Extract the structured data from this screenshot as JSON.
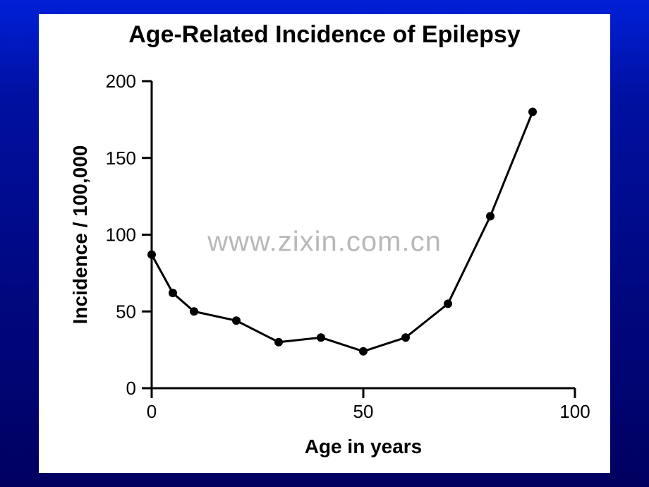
{
  "slide": {
    "background_gradient_top": "#0020d8",
    "background_gradient_bottom": "#000060"
  },
  "panel": {
    "background_color": "#ffffff"
  },
  "watermark": {
    "text": "www.zixin.com.cn",
    "color": "#b8b8b8",
    "fontsize": 40
  },
  "chart": {
    "type": "line",
    "title": "Age-Related Incidence of Epilepsy",
    "title_fontsize": 34,
    "title_fontweight": "bold",
    "xlabel": "Age in years",
    "ylabel": "Incidence / 100,000",
    "label_fontsize": 28,
    "label_fontweight": "bold",
    "axis_color": "#000000",
    "axis_width": 3,
    "x": [
      0,
      5,
      10,
      20,
      30,
      40,
      50,
      60,
      70,
      80,
      90
    ],
    "y": [
      87,
      62,
      50,
      44,
      30,
      33,
      24,
      33,
      55,
      112,
      180
    ],
    "line_color": "#000000",
    "line_width": 3,
    "marker_color": "#000000",
    "marker_radius": 6,
    "xlim": [
      0,
      100
    ],
    "ylim": [
      0,
      200
    ],
    "xticks": [
      0,
      50,
      100
    ],
    "yticks": [
      0,
      50,
      100,
      150,
      200
    ],
    "tick_fontsize": 26,
    "tick_length": 14,
    "tick_width": 3,
    "background_color": "#ffffff"
  }
}
